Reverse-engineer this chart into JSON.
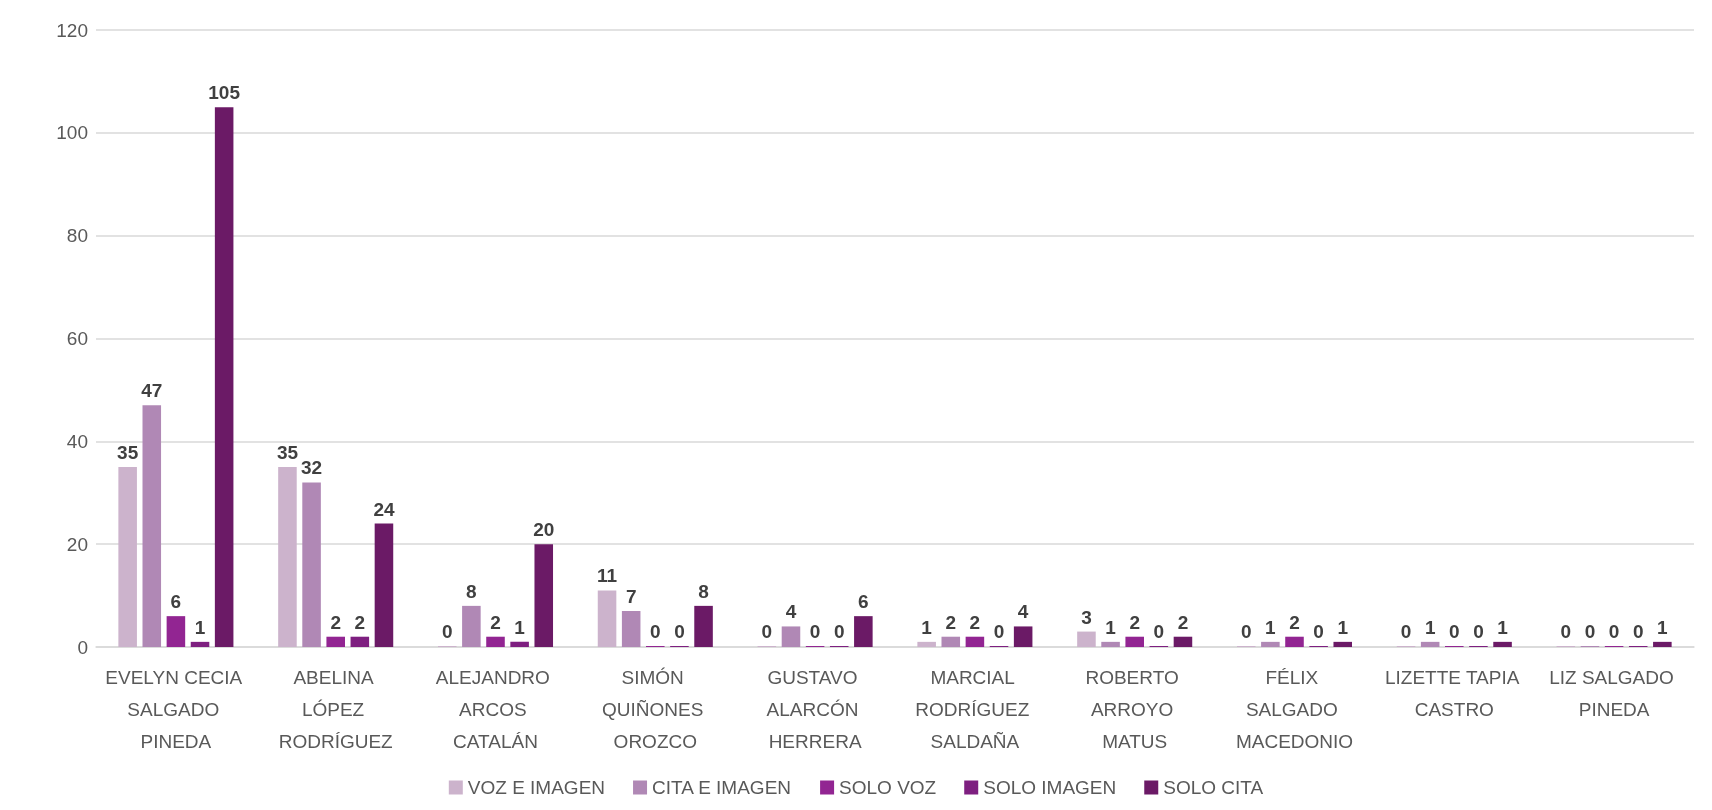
{
  "chart_data": {
    "type": "bar",
    "categories": [
      "EVELYN CECIA SALGADO PINEDA",
      "ABELINA LÓPEZ RODRÍGUEZ",
      "ALEJANDRO ARCOS CATALÁN",
      "SIMÓN QUIÑONES OROZCO",
      "GUSTAVO ALARCÓN HERRERA",
      "MARCIAL RODRÍGUEZ SALDAÑA",
      "ROBERTO ARROYO MATUS",
      "FÉLIX SALGADO MACEDONIO",
      "LIZETTE TAPIA CASTRO",
      "LIZ SALGADO PINEDA"
    ],
    "series": [
      {
        "name": "VOZ E IMAGEN",
        "color": "#ccb3cc",
        "values": [
          35,
          35,
          0,
          11,
          0,
          1,
          3,
          0,
          0,
          0
        ]
      },
      {
        "name": "CITA E IMAGEN",
        "color": "#b088b5",
        "values": [
          47,
          32,
          8,
          7,
          4,
          2,
          1,
          1,
          1,
          0
        ]
      },
      {
        "name": "SOLO VOZ",
        "color": "#922592",
        "values": [
          6,
          2,
          2,
          0,
          0,
          2,
          2,
          2,
          0,
          0
        ]
      },
      {
        "name": "SOLO IMAGEN",
        "color": "#7e1f80",
        "values": [
          1,
          2,
          1,
          0,
          0,
          0,
          0,
          0,
          0,
          0
        ]
      },
      {
        "name": "SOLO CITA",
        "color": "#6b1a66",
        "values": [
          105,
          24,
          20,
          8,
          6,
          4,
          2,
          1,
          1,
          1
        ]
      }
    ],
    "ylim": [
      0,
      120
    ],
    "yticks": [
      0,
      20,
      40,
      60,
      80,
      100,
      120
    ],
    "grid": true,
    "legend": "bottom",
    "data_labels": true
  }
}
